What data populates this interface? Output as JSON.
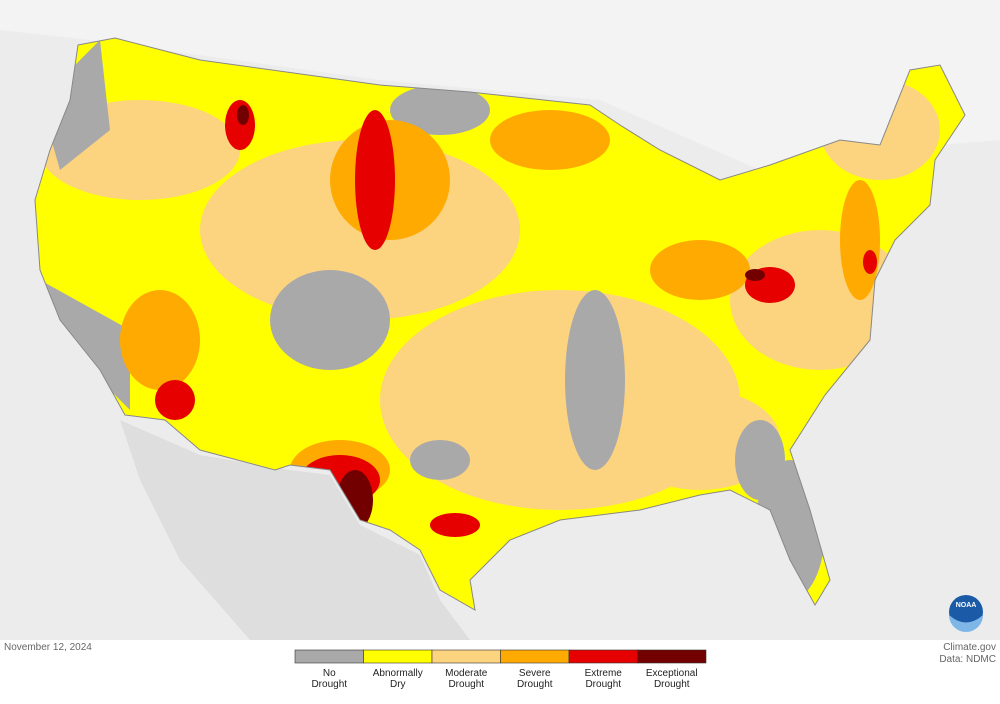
{
  "date": "November 12, 2024",
  "credits": [
    "Climate.gov",
    "Data: NDMC"
  ],
  "logo": "NOAA",
  "legend": [
    {
      "lines": [
        "No",
        "Drought"
      ],
      "color": "#a9a9a9"
    },
    {
      "lines": [
        "Abnormally",
        "Dry"
      ],
      "color": "#ffff00"
    },
    {
      "lines": [
        "Moderate",
        "Drought"
      ],
      "color": "#fcd37f"
    },
    {
      "lines": [
        "Severe",
        "Drought"
      ],
      "color": "#ffaa00"
    },
    {
      "lines": [
        "Extreme",
        "Drought"
      ],
      "color": "#e60000"
    },
    {
      "lines": [
        "Exceptional",
        "Drought"
      ],
      "color": "#730000"
    }
  ]
}
